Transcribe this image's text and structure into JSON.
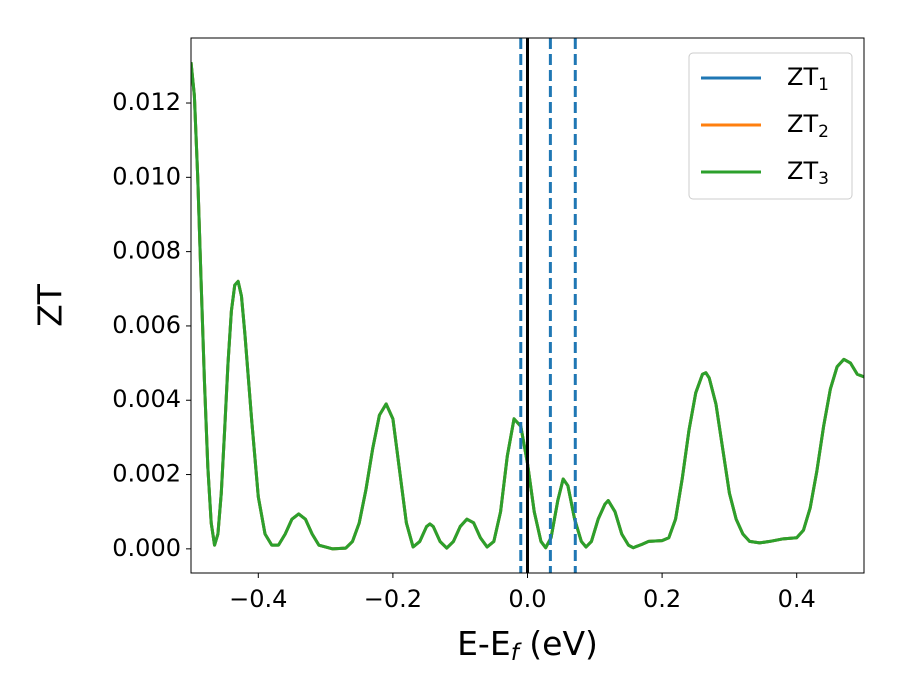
{
  "chart_data": {
    "type": "line",
    "xlabel": {
      "text": "E-E",
      "subscript": "f",
      "suffix": " (eV)"
    },
    "ylabel": "ZT",
    "x": [
      -0.5,
      -0.495,
      -0.49,
      -0.485,
      -0.48,
      -0.475,
      -0.47,
      -0.465,
      -0.46,
      -0.455,
      -0.45,
      -0.445,
      -0.44,
      -0.435,
      -0.43,
      -0.425,
      -0.42,
      -0.41,
      -0.4,
      -0.39,
      -0.38,
      -0.37,
      -0.36,
      -0.35,
      -0.34,
      -0.33,
      -0.32,
      -0.31,
      -0.29,
      -0.27,
      -0.26,
      -0.25,
      -0.24,
      -0.23,
      -0.22,
      -0.21,
      -0.2,
      -0.19,
      -0.18,
      -0.17,
      -0.16,
      -0.15,
      -0.145,
      -0.14,
      -0.13,
      -0.12,
      -0.11,
      -0.1,
      -0.09,
      -0.08,
      -0.07,
      -0.06,
      -0.05,
      -0.04,
      -0.03,
      -0.02,
      -0.01,
      0.0,
      0.01,
      0.02,
      0.027,
      0.035,
      0.045,
      0.053,
      0.06,
      0.07,
      0.08,
      0.087,
      0.095,
      0.105,
      0.115,
      0.12,
      0.13,
      0.14,
      0.15,
      0.157,
      0.17,
      0.18,
      0.2,
      0.21,
      0.22,
      0.23,
      0.24,
      0.25,
      0.26,
      0.265,
      0.27,
      0.28,
      0.29,
      0.3,
      0.31,
      0.32,
      0.33,
      0.345,
      0.36,
      0.38,
      0.4,
      0.41,
      0.42,
      0.43,
      0.44,
      0.45,
      0.46,
      0.47,
      0.48,
      0.49,
      0.5
    ],
    "series": [
      {
        "name": "ZT",
        "subscript": "1",
        "color": "#1f77b4",
        "values": [
          0.0131,
          0.0122,
          0.01,
          0.0072,
          0.0045,
          0.0022,
          0.0007,
          0.0001,
          0.0004,
          0.0015,
          0.0032,
          0.005,
          0.0064,
          0.0071,
          0.0072,
          0.0068,
          0.0058,
          0.0035,
          0.0014,
          0.0004,
          0.0001,
          0.0001,
          0.0004,
          0.0008,
          0.00094,
          0.0008,
          0.0004,
          0.0001,
          0.0,
          2e-05,
          0.0002,
          0.0007,
          0.0016,
          0.0027,
          0.0036,
          0.0039,
          0.0035,
          0.0021,
          0.0007,
          5e-05,
          0.0002,
          0.0006,
          0.00067,
          0.0006,
          0.0002,
          2e-05,
          0.0002,
          0.0006,
          0.0008,
          0.0007,
          0.0003,
          5e-05,
          0.0002,
          0.001,
          0.0025,
          0.0035,
          0.0033,
          0.0023,
          0.001,
          0.0002,
          3e-05,
          0.0003,
          0.0013,
          0.00188,
          0.0017,
          0.0008,
          0.0002,
          5e-05,
          0.0002,
          0.0008,
          0.0012,
          0.0013,
          0.001,
          0.0004,
          0.0001,
          3e-05,
          0.00012,
          0.0002,
          0.00022,
          0.0003,
          0.0008,
          0.0019,
          0.0032,
          0.0042,
          0.0047,
          0.00474,
          0.0046,
          0.0039,
          0.0027,
          0.0015,
          0.0008,
          0.0004,
          0.0002,
          0.00016,
          0.0002,
          0.00027,
          0.0003,
          0.0005,
          0.0011,
          0.0021,
          0.0033,
          0.0043,
          0.0049,
          0.0051,
          0.005,
          0.0047,
          0.00463
        ]
      },
      {
        "name": "ZT",
        "subscript": "2",
        "color": "#ff7f0e",
        "values": [
          0.0131,
          0.0122,
          0.01,
          0.0072,
          0.0045,
          0.0022,
          0.0007,
          0.0001,
          0.0004,
          0.0015,
          0.0032,
          0.005,
          0.0064,
          0.0071,
          0.0072,
          0.0068,
          0.0058,
          0.0035,
          0.0014,
          0.0004,
          0.0001,
          0.0001,
          0.0004,
          0.0008,
          0.00094,
          0.0008,
          0.0004,
          0.0001,
          0.0,
          2e-05,
          0.0002,
          0.0007,
          0.0016,
          0.0027,
          0.0036,
          0.0039,
          0.0035,
          0.0021,
          0.0007,
          5e-05,
          0.0002,
          0.0006,
          0.00067,
          0.0006,
          0.0002,
          2e-05,
          0.0002,
          0.0006,
          0.0008,
          0.0007,
          0.0003,
          5e-05,
          0.0002,
          0.001,
          0.0025,
          0.0035,
          0.0033,
          0.0023,
          0.001,
          0.0002,
          3e-05,
          0.0003,
          0.0013,
          0.00188,
          0.0017,
          0.0008,
          0.0002,
          5e-05,
          0.0002,
          0.0008,
          0.0012,
          0.0013,
          0.001,
          0.0004,
          0.0001,
          3e-05,
          0.00012,
          0.0002,
          0.00022,
          0.0003,
          0.0008,
          0.0019,
          0.0032,
          0.0042,
          0.0047,
          0.00474,
          0.0046,
          0.0039,
          0.0027,
          0.0015,
          0.0008,
          0.0004,
          0.0002,
          0.00016,
          0.0002,
          0.00027,
          0.0003,
          0.0005,
          0.0011,
          0.0021,
          0.0033,
          0.0043,
          0.0049,
          0.0051,
          0.005,
          0.0047,
          0.00463
        ]
      },
      {
        "name": "ZT",
        "subscript": "3",
        "color": "#2ca02c",
        "values": [
          0.0131,
          0.0122,
          0.01,
          0.0072,
          0.0045,
          0.0022,
          0.0007,
          0.0001,
          0.0004,
          0.0015,
          0.0032,
          0.005,
          0.0064,
          0.0071,
          0.0072,
          0.0068,
          0.0058,
          0.0035,
          0.0014,
          0.0004,
          0.0001,
          0.0001,
          0.0004,
          0.0008,
          0.00094,
          0.0008,
          0.0004,
          0.0001,
          0.0,
          2e-05,
          0.0002,
          0.0007,
          0.0016,
          0.0027,
          0.0036,
          0.0039,
          0.0035,
          0.0021,
          0.0007,
          5e-05,
          0.0002,
          0.0006,
          0.00067,
          0.0006,
          0.0002,
          2e-05,
          0.0002,
          0.0006,
          0.0008,
          0.0007,
          0.0003,
          5e-05,
          0.0002,
          0.001,
          0.0025,
          0.0035,
          0.0033,
          0.0023,
          0.001,
          0.0002,
          3e-05,
          0.0003,
          0.0013,
          0.00188,
          0.0017,
          0.0008,
          0.0002,
          5e-05,
          0.0002,
          0.0008,
          0.0012,
          0.0013,
          0.001,
          0.0004,
          0.0001,
          3e-05,
          0.00012,
          0.0002,
          0.00022,
          0.0003,
          0.0008,
          0.0019,
          0.0032,
          0.0042,
          0.0047,
          0.00474,
          0.0046,
          0.0039,
          0.0027,
          0.0015,
          0.0008,
          0.0004,
          0.0002,
          0.00016,
          0.0002,
          0.00027,
          0.0003,
          0.0005,
          0.0011,
          0.0021,
          0.0033,
          0.0043,
          0.0049,
          0.0051,
          0.005,
          0.0047,
          0.00463
        ]
      }
    ],
    "vlines": [
      {
        "x": 0,
        "color": "#000000",
        "style": "solid"
      },
      {
        "x": -0.01,
        "color": "#1f77b4",
        "style": "dashed"
      },
      {
        "x": 0.034,
        "color": "#1f77b4",
        "style": "dashed"
      },
      {
        "x": 0.071,
        "color": "#1f77b4",
        "style": "dashed"
      }
    ],
    "xlim": [
      -0.5,
      0.5
    ],
    "ylim": [
      -0.00065,
      0.01375
    ],
    "xticks": [
      {
        "value": -0.4,
        "label": "−0.4"
      },
      {
        "value": -0.2,
        "label": "−0.2"
      },
      {
        "value": 0,
        "label": "0.0"
      },
      0.2,
      0.4
    ],
    "yticks": [
      {
        "value": 0,
        "label": "0.000"
      },
      {
        "value": 0.002,
        "label": "0.002"
      },
      {
        "value": 0.004,
        "label": "0.004"
      },
      {
        "value": 0.006,
        "label": "0.006"
      },
      {
        "value": 0.008,
        "label": "0.008"
      },
      {
        "value": 0.01,
        "label": "0.010"
      },
      {
        "value": 0.012,
        "label": "0.012"
      }
    ],
    "legend": "upper right",
    "grid": false
  }
}
